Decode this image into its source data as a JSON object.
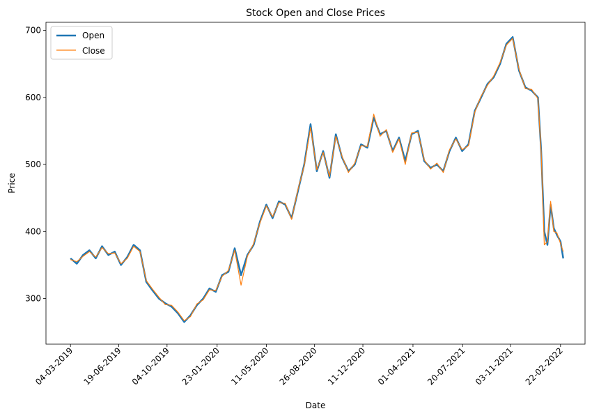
{
  "chart_data": {
    "type": "line",
    "title": "Stock Open and Close Prices",
    "xlabel": "Date",
    "ylabel": "Price",
    "x_tick_labels": [
      "04-03-2019",
      "19-06-2019",
      "04-10-2019",
      "23-01-2020",
      "11-05-2020",
      "26-08-2020",
      "11-12-2020",
      "01-04-2021",
      "20-07-2021",
      "03-11-2021",
      "22-02-2022"
    ],
    "x_range": [
      "2019-03-04",
      "2022-02-22"
    ],
    "ylim": [
      232,
      712
    ],
    "y_ticks": [
      300,
      400,
      500,
      600,
      700
    ],
    "grid": false,
    "legend_position": "top-left",
    "dates": [
      "2019-03-04",
      "2019-03-18",
      "2019-04-01",
      "2019-04-15",
      "2019-04-29",
      "2019-05-13",
      "2019-05-27",
      "2019-06-10",
      "2019-06-24",
      "2019-07-08",
      "2019-07-22",
      "2019-08-05",
      "2019-08-19",
      "2019-09-02",
      "2019-09-16",
      "2019-09-30",
      "2019-10-14",
      "2019-10-28",
      "2019-11-11",
      "2019-11-25",
      "2019-12-09",
      "2019-12-23",
      "2020-01-06",
      "2020-01-20",
      "2020-02-03",
      "2020-02-17",
      "2020-03-02",
      "2020-03-16",
      "2020-03-30",
      "2020-04-13",
      "2020-04-27",
      "2020-05-11",
      "2020-05-25",
      "2020-06-08",
      "2020-06-22",
      "2020-07-06",
      "2020-07-20",
      "2020-08-03",
      "2020-08-17",
      "2020-08-31",
      "2020-09-14",
      "2020-09-28",
      "2020-10-12",
      "2020-10-26",
      "2020-11-09",
      "2020-11-23",
      "2020-12-07",
      "2020-12-21",
      "2021-01-04",
      "2021-01-18",
      "2021-02-01",
      "2021-02-15",
      "2021-03-01",
      "2021-03-15",
      "2021-03-29",
      "2021-04-12",
      "2021-04-26",
      "2021-05-10",
      "2021-05-24",
      "2021-06-07",
      "2021-06-21",
      "2021-07-05",
      "2021-07-19",
      "2021-08-02",
      "2021-08-16",
      "2021-08-30",
      "2021-09-13",
      "2021-09-27",
      "2021-10-11",
      "2021-10-25",
      "2021-11-08",
      "2021-11-22",
      "2021-12-06",
      "2021-12-20",
      "2022-01-03",
      "2022-01-10",
      "2022-01-17",
      "2022-01-24",
      "2022-01-31",
      "2022-02-07",
      "2022-02-14",
      "2022-02-22",
      "2022-02-28"
    ],
    "series": [
      {
        "name": "Open",
        "color": "#1f77b4",
        "values": [
          360,
          352,
          365,
          372,
          360,
          378,
          365,
          370,
          350,
          362,
          380,
          372,
          325,
          312,
          300,
          293,
          288,
          278,
          265,
          275,
          290,
          300,
          315,
          310,
          335,
          340,
          375,
          335,
          365,
          380,
          415,
          440,
          420,
          445,
          440,
          420,
          460,
          500,
          560,
          490,
          520,
          480,
          545,
          510,
          490,
          500,
          530,
          525,
          570,
          545,
          550,
          520,
          540,
          505,
          545,
          550,
          505,
          495,
          500,
          490,
          520,
          540,
          520,
          530,
          580,
          600,
          620,
          630,
          650,
          680,
          690,
          640,
          615,
          610,
          600,
          520,
          400,
          380,
          440,
          405,
          395,
          385,
          360
        ]
      },
      {
        "name": "Close",
        "color": "#ff7f0e",
        "values": [
          358,
          355,
          363,
          370,
          362,
          376,
          367,
          368,
          352,
          360,
          378,
          370,
          327,
          314,
          302,
          291,
          290,
          280,
          267,
          273,
          292,
          298,
          313,
          312,
          333,
          342,
          372,
          320,
          363,
          382,
          413,
          438,
          422,
          443,
          442,
          418,
          462,
          498,
          555,
          492,
          518,
          482,
          542,
          512,
          488,
          502,
          528,
          527,
          575,
          542,
          552,
          518,
          538,
          500,
          547,
          548,
          507,
          493,
          502,
          488,
          522,
          538,
          522,
          528,
          578,
          602,
          618,
          632,
          652,
          678,
          688,
          642,
          613,
          612,
          598,
          518,
          380,
          385,
          445,
          400,
          398,
          382,
          370
        ]
      }
    ]
  }
}
